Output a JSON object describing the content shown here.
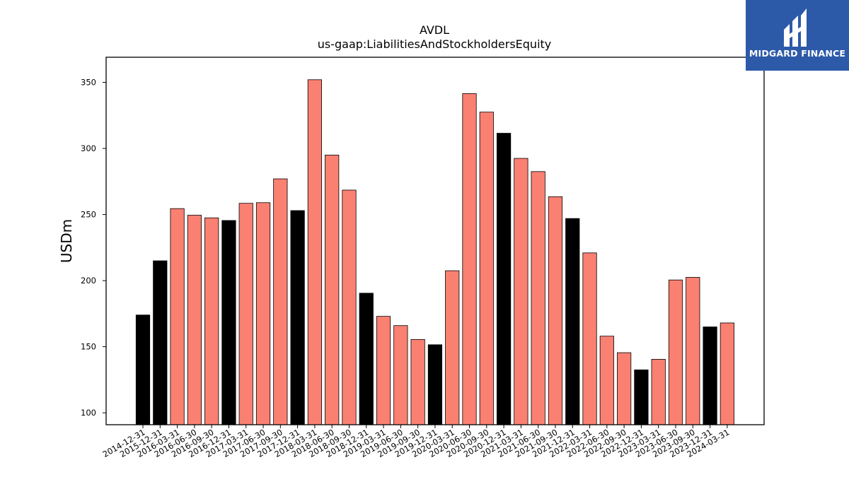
{
  "chart_data": {
    "type": "bar",
    "title": "AVDL",
    "subtitle": "us-gaap:LiabilitiesAndStockholdersEquity",
    "xlabel": "",
    "ylabel": "USDm",
    "ylim": [
      91,
      369
    ],
    "yticks": [
      "100",
      "150",
      "200",
      "250",
      "300",
      "350"
    ],
    "categories": [
      "2014-12-31",
      "2015-12-31",
      "2016-03-31",
      "2016-06-30",
      "2016-09-30",
      "2016-12-31",
      "2017-03-31",
      "2017-06-30",
      "2017-09-30",
      "2017-12-31",
      "2018-03-31",
      "2018-06-30",
      "2018-09-30",
      "2018-12-31",
      "2019-03-31",
      "2019-06-30",
      "2019-09-30",
      "2019-12-31",
      "2020-03-31",
      "2020-06-30",
      "2020-09-30",
      "2020-12-31",
      "2021-03-31",
      "2021-06-30",
      "2021-09-30",
      "2021-12-31",
      "2022-03-31",
      "2022-06-30",
      "2022-09-30",
      "2022-12-31",
      "2023-03-31",
      "2023-06-30",
      "2023-09-30",
      "2023-12-31",
      "2024-03-31"
    ],
    "values": [
      174,
      215,
      254.5,
      249.5,
      247.5,
      245.5,
      258.5,
      259,
      277,
      253,
      352,
      295,
      268.5,
      190.5,
      173,
      166,
      155.5,
      151.5,
      207.5,
      341.5,
      327.5,
      311.5,
      292.5,
      282.5,
      263.5,
      247,
      221,
      158,
      145.5,
      132.5,
      140.5,
      200.5,
      202.5,
      165,
      168
    ],
    "annual": [
      true,
      true,
      false,
      false,
      false,
      true,
      false,
      false,
      false,
      true,
      false,
      false,
      false,
      true,
      false,
      false,
      false,
      true,
      false,
      false,
      false,
      true,
      false,
      false,
      false,
      true,
      false,
      false,
      false,
      true,
      false,
      false,
      false,
      true,
      false
    ],
    "colors": {
      "annual": "#000000",
      "quarterly": "#fa8072",
      "edge": "#000000"
    },
    "grid": false,
    "legend": "none"
  },
  "logo": {
    "text": "MIDGARD FINANCE",
    "color": "#2d5aa8"
  }
}
